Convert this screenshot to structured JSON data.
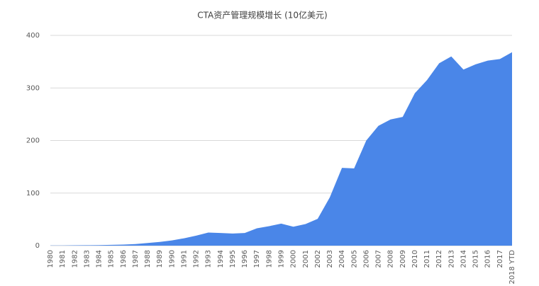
{
  "chart_data": {
    "type": "area",
    "title": "CTA资产管理规模增长 (10亿美元)",
    "categories": [
      "1980",
      "1981",
      "1982",
      "1983",
      "1984",
      "1985",
      "1986",
      "1987",
      "1988",
      "1989",
      "1990",
      "1991",
      "1992",
      "1993",
      "1994",
      "1995",
      "1996",
      "1997",
      "1998",
      "1999",
      "2000",
      "2001",
      "2002",
      "2003",
      "2004",
      "2005",
      "2006",
      "2007",
      "2008",
      "2009",
      "2010",
      "2011",
      "2012",
      "2013",
      "2014",
      "2015",
      "2016",
      "2017",
      "2018 YTD"
    ],
    "values": [
      0.3,
      0.4,
      0.6,
      0.8,
      1,
      1.5,
      2,
      3,
      5,
      7,
      10,
      14,
      19,
      25,
      24,
      23,
      24,
      33,
      37,
      42,
      36,
      41,
      51,
      92,
      148,
      147,
      200,
      228,
      240,
      245,
      290,
      315,
      347,
      360,
      335,
      345,
      352,
      355,
      368
    ],
    "color": "#4a86e8",
    "ylim": [
      0,
      400
    ],
    "yticks": [
      0,
      100,
      200,
      300,
      400
    ],
    "grid": true
  }
}
